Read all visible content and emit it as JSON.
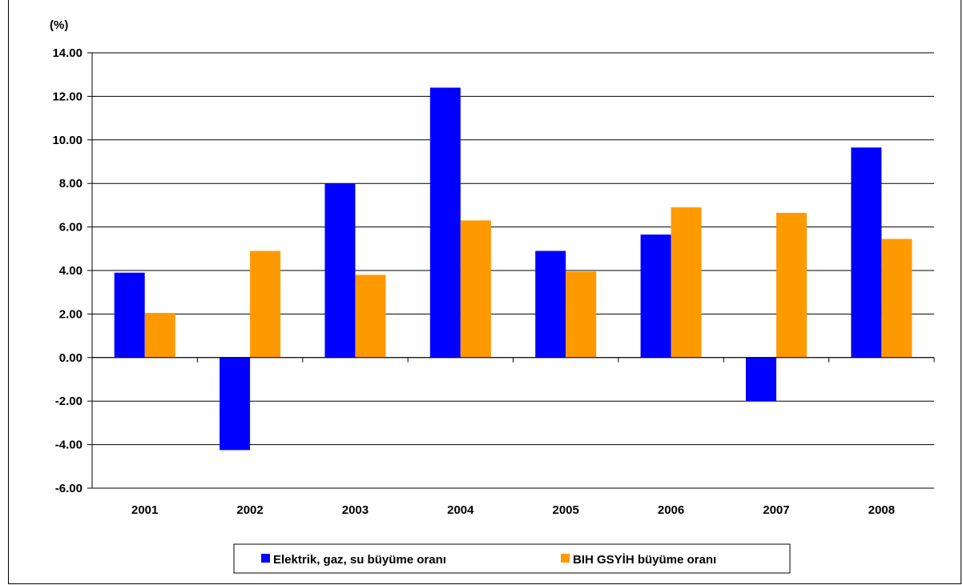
{
  "chart_data": {
    "type": "bar",
    "unit_label": "(%)",
    "categories": [
      "2001",
      "2002",
      "2003",
      "2004",
      "2005",
      "2006",
      "2007",
      "2008"
    ],
    "series": [
      {
        "name": "Elektrik, gaz, su büyüme oranı",
        "color": "#0000ff",
        "values": [
          3.9,
          -4.25,
          8.0,
          12.4,
          4.9,
          5.65,
          -2.0,
          9.65
        ]
      },
      {
        "name": "BIH GSYİH büyüme oranı",
        "color": "#ff9900",
        "values": [
          2.05,
          4.9,
          3.8,
          6.3,
          3.95,
          6.9,
          6.65,
          5.45
        ]
      }
    ],
    "ylim": [
      -6,
      14
    ],
    "ytick_step": 2,
    "ytick_format_decimals": 2,
    "grid": true,
    "legend_position": "bottom-center"
  }
}
